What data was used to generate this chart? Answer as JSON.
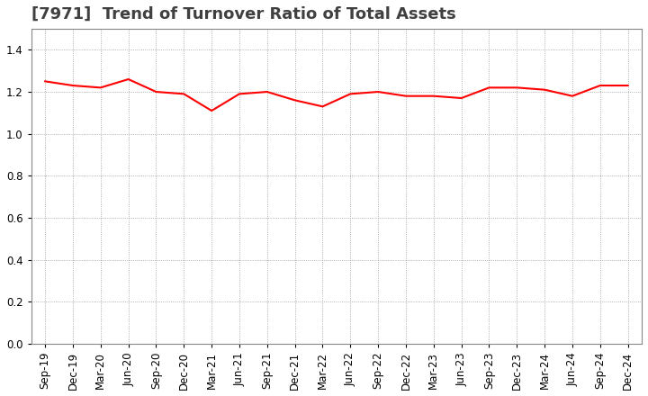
{
  "title": "[7971]  Trend of Turnover Ratio of Total Assets",
  "labels": [
    "Sep-19",
    "Dec-19",
    "Mar-20",
    "Jun-20",
    "Sep-20",
    "Dec-20",
    "Mar-21",
    "Jun-21",
    "Sep-21",
    "Dec-21",
    "Mar-22",
    "Jun-22",
    "Sep-22",
    "Dec-22",
    "Mar-23",
    "Jun-23",
    "Sep-23",
    "Dec-23",
    "Mar-24",
    "Jun-24",
    "Sep-24",
    "Dec-24"
  ],
  "values": [
    1.25,
    1.23,
    1.22,
    1.26,
    1.2,
    1.19,
    1.11,
    1.19,
    1.2,
    1.16,
    1.13,
    1.19,
    1.2,
    1.18,
    1.18,
    1.17,
    1.22,
    1.22,
    1.21,
    1.18,
    1.23,
    1.23
  ],
  "line_color": "#FF0000",
  "line_width": 1.5,
  "ylim": [
    0.0,
    1.5
  ],
  "yticks": [
    0.0,
    0.2,
    0.4,
    0.6,
    0.8,
    1.0,
    1.2,
    1.4
  ],
  "title_fontsize": 13,
  "tick_fontsize": 8.5,
  "grid_color": "#999999",
  "bg_color": "#ffffff",
  "plot_bg_color": "#ffffff",
  "title_color": "#404040"
}
